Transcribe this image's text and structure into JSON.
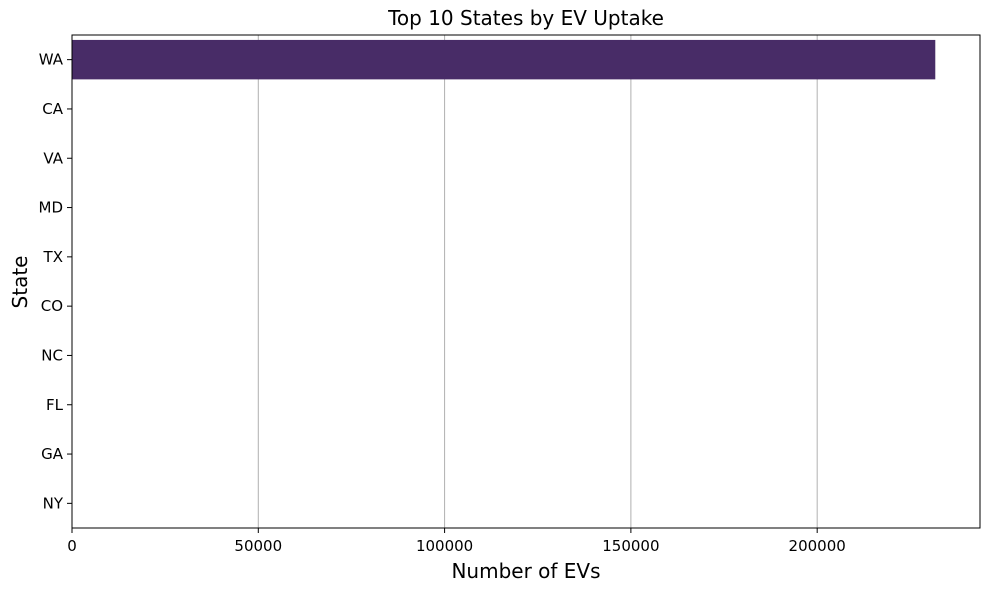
{
  "chart_data": {
    "type": "bar",
    "orientation": "horizontal",
    "title": "Top 10 States by EV Uptake",
    "xlabel": "Number of EVs",
    "ylabel": "State",
    "categories": [
      "WA",
      "CA",
      "VA",
      "MD",
      "TX",
      "CO",
      "NC",
      "FL",
      "GA",
      "NY"
    ],
    "values": [
      231700,
      100,
      60,
      40,
      35,
      30,
      25,
      20,
      15,
      10
    ],
    "xlim": [
      0,
      243700
    ],
    "xticks": [
      0,
      50000,
      100000,
      150000,
      200000
    ],
    "xtick_labels": [
      "0",
      "50000",
      "100000",
      "150000",
      "200000"
    ],
    "grid": "x-major",
    "bar_color": "#482c67",
    "grid_color": "#b0b0b0"
  }
}
